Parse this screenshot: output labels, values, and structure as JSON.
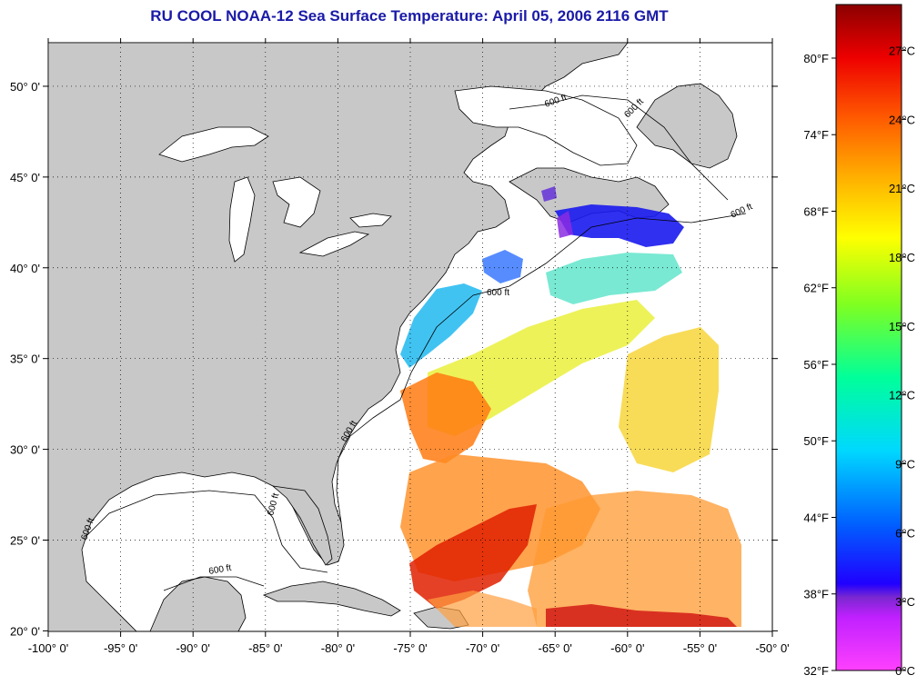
{
  "title": "RU COOL  NOAA-12  Sea Surface Temperature:  April 05, 2006 2116 GMT",
  "map": {
    "longitude_labels": [
      "-100° 0'",
      "-95° 0'",
      "-90° 0'",
      "-85° 0'",
      "-80° 0'",
      "-75° 0'",
      "-70° 0'",
      "-65° 0'",
      "-60° 0'",
      "-55° 0'",
      "-50° 0'"
    ],
    "longitude_values": [
      -100,
      -95,
      -90,
      -85,
      -80,
      -75,
      -70,
      -65,
      -60,
      -55,
      -50
    ],
    "latitude_labels": [
      "50° 0'",
      "45° 0'",
      "40° 0'",
      "35° 0'",
      "30° 0'",
      "25° 0'",
      "20° 0'"
    ],
    "latitude_values": [
      50,
      45,
      40,
      35,
      30,
      25,
      20
    ],
    "lon_range": [
      -100,
      -50
    ],
    "lat_range": [
      19.97,
      52.4
    ],
    "contour_labels": [
      "600 ft",
      "600 ft",
      "600 ft",
      "600 ft",
      "600 ft",
      "600 ft",
      "600 ft",
      "600 ft"
    ],
    "land_color": "#c8c8c8",
    "water_color": "#ffffff",
    "grid": "dotted"
  },
  "colorbar": {
    "fahrenheit_labels": [
      "80°F",
      "74°F",
      "68°F",
      "62°F",
      "56°F",
      "50°F",
      "44°F",
      "38°F",
      "32°F"
    ],
    "celsius_labels": [
      "27°C",
      "24°C",
      "21°C",
      "18°C",
      "15°C",
      "12°C",
      "9°C",
      "6°C",
      "3°C",
      "0°C"
    ],
    "celsius_values": [
      27,
      24,
      21,
      18,
      15,
      12,
      9,
      6,
      3,
      0
    ],
    "range_c": [
      0,
      29
    ],
    "colors": [
      "#ff40ff",
      "#8a2be2",
      "#0000ff",
      "#00c8ff",
      "#00ffaa",
      "#ffff00",
      "#ff9900",
      "#ff2200",
      "#8b0000"
    ]
  }
}
